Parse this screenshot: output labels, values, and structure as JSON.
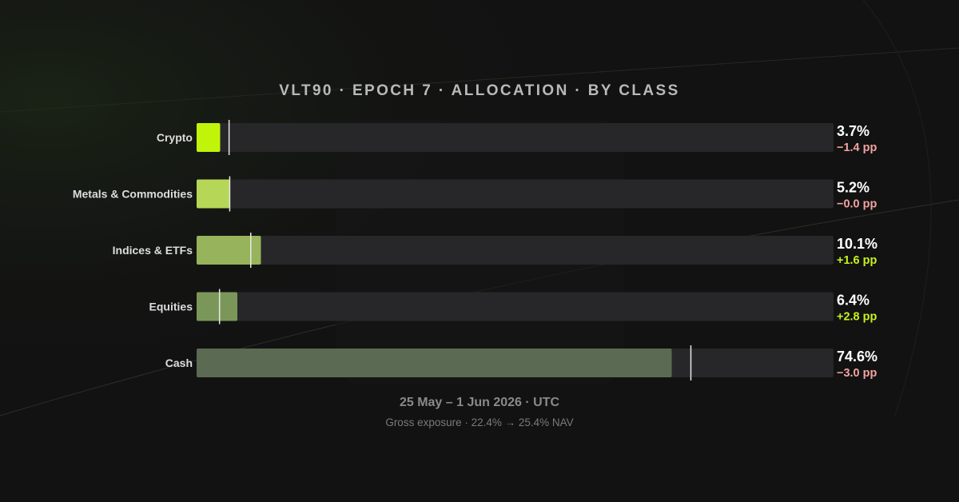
{
  "chart_data": {
    "type": "bar",
    "orientation": "horizontal",
    "title": "VLT90 · EPOCH 7 · ALLOCATION · BY CLASS",
    "categories": [
      "Crypto",
      "Metals & Commodities",
      "Indices & ETFs",
      "Equities",
      "Cash"
    ],
    "values": [
      3.7,
      5.2,
      10.1,
      6.4,
      74.6
    ],
    "value_labels": [
      "3.7%",
      "5.2%",
      "10.1%",
      "6.4%",
      "74.6%"
    ],
    "previous_values": [
      5.1,
      5.2,
      8.5,
      3.6,
      77.6
    ],
    "changes": [
      -1.4,
      -0.0,
      1.6,
      2.8,
      -3.0
    ],
    "change_labels": [
      "−1.4 pp",
      "−0.0 pp",
      "+1.6 pp",
      "+2.8 pp",
      "−3.0 pp"
    ],
    "xlim": [
      0,
      100
    ],
    "grid": false,
    "legend": "none",
    "colors": {
      "bars": [
        "#c0f50a",
        "#b6d658",
        "#97b35b",
        "#7a9759",
        "#5b6a53"
      ],
      "track": "#27272a",
      "marker": "#e8e8e8",
      "positive": "#c6f31a",
      "negative": "#f0a3a0",
      "value_text": "#ffffff",
      "category_text": "#dddddd"
    }
  },
  "footer": {
    "date_range": "25 May – 1 Jun 2026 · UTC",
    "exposure": "Gross exposure · 22.4% → 25.4% NAV"
  }
}
